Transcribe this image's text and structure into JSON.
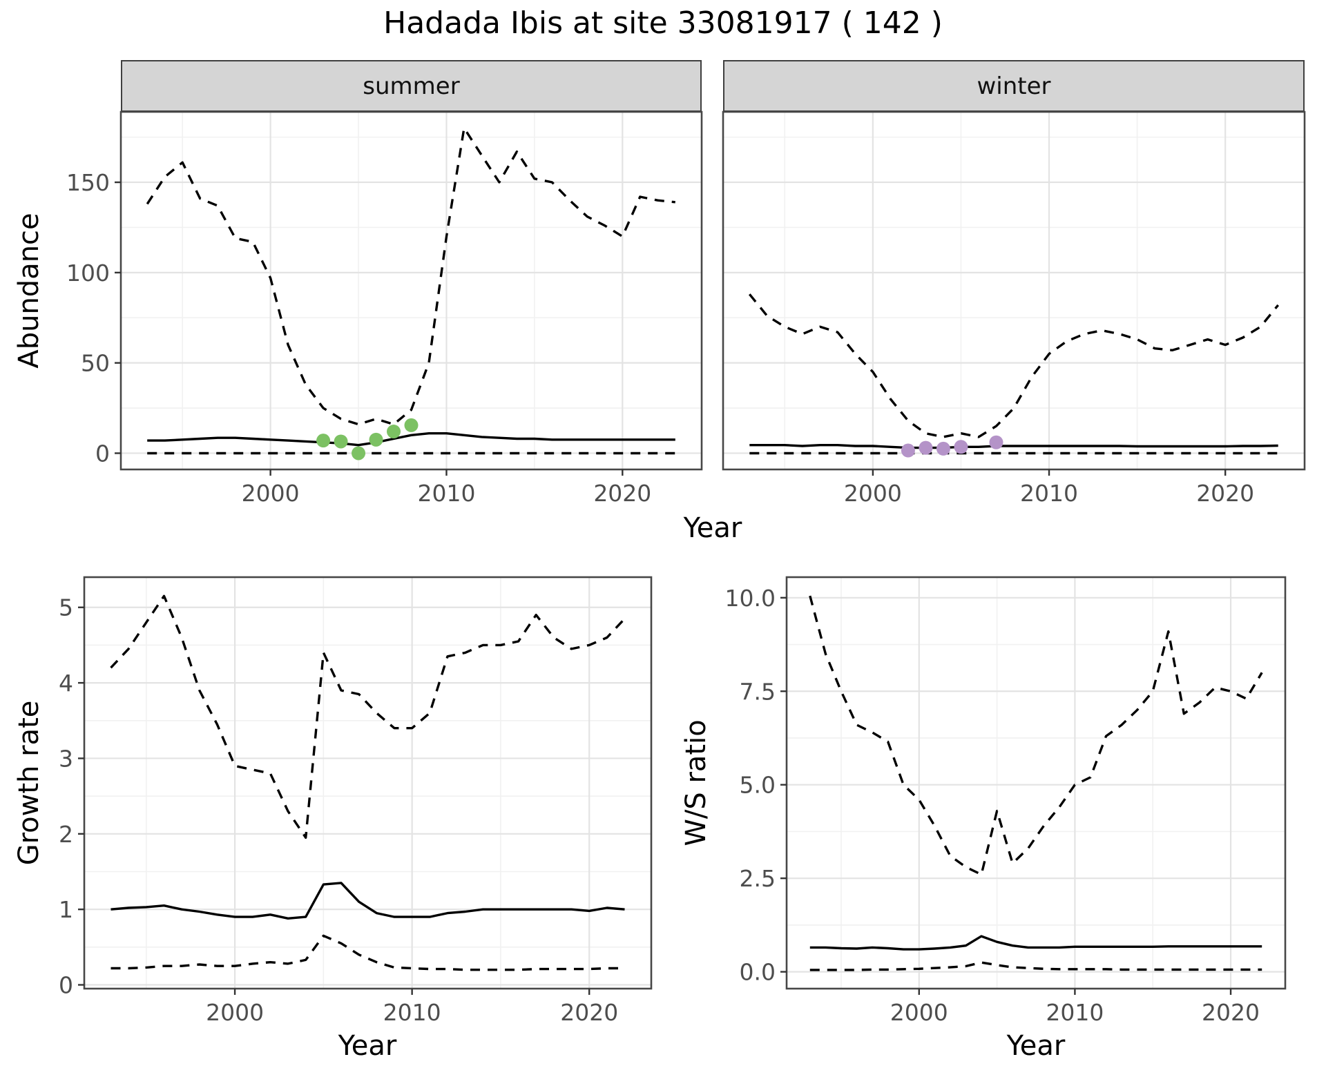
{
  "title": "Hadada Ibis at site 33081917 ( 142 )",
  "facets": {
    "summer": "summer",
    "winter": "winter"
  },
  "axis_labels": {
    "abundance": "Abundance",
    "year": "Year",
    "growth_rate": "Growth rate",
    "ws_ratio": "W/S ratio"
  },
  "colors": {
    "median_line": "#000000",
    "ci_line": "#000000",
    "summer_points": "#7CC163",
    "winter_points": "#B493C8",
    "grid_major": "#e3e3e3",
    "grid_minor": "#f1f1f1",
    "panel_border": "#474747",
    "strip_background": "#d5d5d5",
    "tick_text": "#4d4d4d"
  },
  "chart_data": [
    {
      "id": "summer_abundance",
      "type": "line",
      "facet": "summer",
      "xlabel": "Year",
      "ylabel": "Abundance",
      "xlim": [
        1991.5,
        2024.5
      ],
      "ylim": [
        -9,
        189
      ],
      "grid": true,
      "xticks": {
        "values": [
          2000,
          2010,
          2020
        ],
        "labels": [
          "2000",
          "2010",
          "2020"
        ]
      },
      "yticks": {
        "values": [
          0,
          50,
          100,
          150
        ],
        "labels": [
          "0",
          "50",
          "100",
          "150"
        ]
      },
      "x": [
        1993,
        1994,
        1995,
        1996,
        1997,
        1998,
        1999,
        2000,
        2001,
        2002,
        2003,
        2004,
        2005,
        2006,
        2007,
        2008,
        2009,
        2010,
        2011,
        2012,
        2013,
        2014,
        2015,
        2016,
        2017,
        2018,
        2019,
        2020,
        2021,
        2022,
        2023
      ],
      "series": [
        {
          "name": "upper_ci",
          "linetype": "dashed",
          "values": [
            138,
            153,
            161,
            141,
            137,
            119,
            117,
            97,
            60,
            38,
            25,
            19,
            16,
            19,
            16,
            24,
            50,
            120,
            180,
            165,
            150,
            167,
            152,
            150,
            140,
            131,
            126,
            120,
            142,
            140,
            139
          ]
        },
        {
          "name": "median",
          "linetype": "solid",
          "values": [
            7,
            7,
            7.5,
            8,
            8.5,
            8.5,
            8,
            7.5,
            7,
            6.5,
            6,
            5.5,
            4.5,
            6,
            8,
            10,
            11,
            11,
            10,
            9,
            8.5,
            8,
            8,
            7.5,
            7.5,
            7.5,
            7.5,
            7.5,
            7.5,
            7.5,
            7.5
          ]
        },
        {
          "name": "lower_ci",
          "linetype": "dashed",
          "values": [
            0,
            0,
            0,
            0,
            0,
            0,
            0,
            0,
            0,
            0,
            0,
            0,
            0,
            0,
            0,
            0,
            0,
            0,
            0,
            0,
            0,
            0,
            0,
            0,
            0,
            0,
            0,
            0,
            0,
            0,
            0
          ]
        }
      ],
      "points": {
        "name": "observed-counts-summer",
        "color": "#7CC163",
        "x": [
          2003,
          2004,
          2005,
          2006,
          2007,
          2008
        ],
        "y": [
          7,
          6.5,
          0,
          7.5,
          12,
          15.5
        ]
      }
    },
    {
      "id": "winter_abundance",
      "type": "line",
      "facet": "winter",
      "xlabel": "Year",
      "ylabel": "Abundance",
      "xlim": [
        1991.5,
        2024.5
      ],
      "ylim": [
        -9,
        189
      ],
      "grid": true,
      "xticks": {
        "values": [
          2000,
          2010,
          2020
        ],
        "labels": [
          "2000",
          "2010",
          "2020"
        ]
      },
      "yticks": {
        "values": [
          0,
          50,
          100,
          150
        ],
        "labels": [
          "0",
          "50",
          "100",
          "150"
        ]
      },
      "x": [
        1993,
        1994,
        1995,
        1996,
        1997,
        1998,
        1999,
        2000,
        2001,
        2002,
        2003,
        2004,
        2005,
        2006,
        2007,
        2008,
        2009,
        2010,
        2011,
        2012,
        2013,
        2014,
        2015,
        2016,
        2017,
        2018,
        2019,
        2020,
        2021,
        2022,
        2023
      ],
      "series": [
        {
          "name": "upper_ci",
          "linetype": "dashed",
          "values": [
            88,
            76,
            70,
            66,
            70,
            67,
            55,
            45,
            30,
            18,
            11,
            9,
            11,
            9,
            15,
            25,
            42,
            55,
            62,
            66,
            68,
            66,
            63,
            58,
            57,
            60,
            63,
            60,
            64,
            70,
            82
          ]
        },
        {
          "name": "median",
          "linetype": "solid",
          "values": [
            4.5,
            4.5,
            4.5,
            4,
            4.5,
            4.5,
            4,
            4,
            3.5,
            3,
            3,
            3,
            3.5,
            3.5,
            4,
            4,
            4,
            4,
            4,
            4,
            4,
            4,
            3.8,
            3.8,
            3.8,
            3.8,
            3.8,
            3.8,
            4,
            4,
            4.2
          ]
        },
        {
          "name": "lower_ci",
          "linetype": "dashed",
          "values": [
            0,
            0,
            0,
            0,
            0,
            0,
            0,
            0,
            0,
            0,
            0,
            0,
            0,
            0,
            0,
            0,
            0,
            0,
            0,
            0,
            0,
            0,
            0,
            0,
            0,
            0,
            0,
            0,
            0,
            0,
            0
          ]
        }
      ],
      "points": {
        "name": "observed-counts-winter",
        "color": "#B493C8",
        "x": [
          2002,
          2003,
          2004,
          2005,
          2007
        ],
        "y": [
          1.5,
          3,
          2.5,
          3.5,
          6
        ]
      }
    },
    {
      "id": "growth_rate",
      "type": "line",
      "xlabel": "Year",
      "ylabel": "Growth rate",
      "xlim": [
        1991.5,
        2023.5
      ],
      "ylim": [
        -0.05,
        5.4
      ],
      "grid": true,
      "xticks": {
        "values": [
          2000,
          2010,
          2020
        ],
        "labels": [
          "2000",
          "2010",
          "2020"
        ]
      },
      "yticks": {
        "values": [
          0,
          1,
          2,
          3,
          4,
          5
        ],
        "labels": [
          "0",
          "1",
          "2",
          "3",
          "4",
          "5"
        ]
      },
      "x": [
        1993,
        1994,
        1995,
        1996,
        1997,
        1998,
        1999,
        2000,
        2001,
        2002,
        2003,
        2004,
        2005,
        2006,
        2007,
        2008,
        2009,
        2010,
        2011,
        2012,
        2013,
        2014,
        2015,
        2016,
        2017,
        2018,
        2019,
        2020,
        2021,
        2022
      ],
      "series": [
        {
          "name": "upper_ci",
          "linetype": "dashed",
          "values": [
            4.2,
            4.45,
            4.8,
            5.15,
            4.6,
            3.9,
            3.45,
            2.9,
            2.85,
            2.8,
            2.3,
            1.95,
            4.4,
            3.9,
            3.85,
            3.6,
            3.4,
            3.4,
            3.6,
            4.35,
            4.4,
            4.5,
            4.5,
            4.55,
            4.9,
            4.6,
            4.45,
            4.5,
            4.6,
            4.85
          ]
        },
        {
          "name": "median",
          "linetype": "solid",
          "values": [
            1.0,
            1.02,
            1.03,
            1.05,
            1.0,
            0.97,
            0.93,
            0.9,
            0.9,
            0.93,
            0.88,
            0.9,
            1.33,
            1.35,
            1.1,
            0.95,
            0.9,
            0.9,
            0.9,
            0.95,
            0.97,
            1.0,
            1.0,
            1.0,
            1.0,
            1.0,
            1.0,
            0.98,
            1.02,
            1.0
          ]
        },
        {
          "name": "lower_ci",
          "linetype": "dashed",
          "values": [
            0.22,
            0.22,
            0.23,
            0.25,
            0.25,
            0.27,
            0.25,
            0.25,
            0.28,
            0.3,
            0.28,
            0.33,
            0.65,
            0.55,
            0.4,
            0.3,
            0.23,
            0.22,
            0.21,
            0.21,
            0.2,
            0.2,
            0.2,
            0.2,
            0.21,
            0.21,
            0.21,
            0.21,
            0.22,
            0.22
          ]
        }
      ]
    },
    {
      "id": "ws_ratio",
      "type": "line",
      "xlabel": "Year",
      "ylabel": "W/S ratio",
      "xlim": [
        1991.5,
        2023.5
      ],
      "ylim": [
        -0.45,
        10.55
      ],
      "grid": true,
      "xticks": {
        "values": [
          2000,
          2010,
          2020
        ],
        "labels": [
          "2000",
          "2010",
          "2020"
        ]
      },
      "yticks": {
        "values": [
          0,
          2.5,
          5,
          7.5,
          10
        ],
        "labels": [
          "0.0",
          "2.5",
          "5.0",
          "7.5",
          "10.0"
        ]
      },
      "x": [
        1993,
        1994,
        1995,
        1996,
        1997,
        1998,
        1999,
        2000,
        2001,
        2002,
        2003,
        2004,
        2005,
        2006,
        2007,
        2008,
        2009,
        2010,
        2011,
        2012,
        2013,
        2014,
        2015,
        2016,
        2017,
        2018,
        2019,
        2020,
        2021,
        2022
      ],
      "series": [
        {
          "name": "upper_ci",
          "linetype": "dashed",
          "values": [
            10.05,
            8.5,
            7.5,
            6.6,
            6.4,
            6.15,
            5.0,
            4.6,
            3.9,
            3.1,
            2.8,
            2.6,
            4.3,
            2.9,
            3.3,
            3.9,
            4.4,
            5.0,
            5.2,
            6.3,
            6.6,
            7.0,
            7.5,
            9.1,
            6.9,
            7.2,
            7.6,
            7.5,
            7.3,
            8.0
          ]
        },
        {
          "name": "median",
          "linetype": "solid",
          "values": [
            0.65,
            0.65,
            0.63,
            0.62,
            0.65,
            0.63,
            0.6,
            0.6,
            0.62,
            0.65,
            0.7,
            0.95,
            0.8,
            0.7,
            0.65,
            0.65,
            0.65,
            0.67,
            0.67,
            0.67,
            0.67,
            0.67,
            0.67,
            0.68,
            0.68,
            0.68,
            0.68,
            0.68,
            0.68,
            0.68
          ]
        },
        {
          "name": "lower_ci",
          "linetype": "dashed",
          "values": [
            0.05,
            0.05,
            0.05,
            0.05,
            0.06,
            0.06,
            0.07,
            0.08,
            0.1,
            0.12,
            0.15,
            0.25,
            0.18,
            0.12,
            0.1,
            0.08,
            0.07,
            0.07,
            0.07,
            0.07,
            0.06,
            0.06,
            0.06,
            0.06,
            0.06,
            0.06,
            0.06,
            0.06,
            0.06,
            0.06
          ]
        }
      ]
    }
  ]
}
